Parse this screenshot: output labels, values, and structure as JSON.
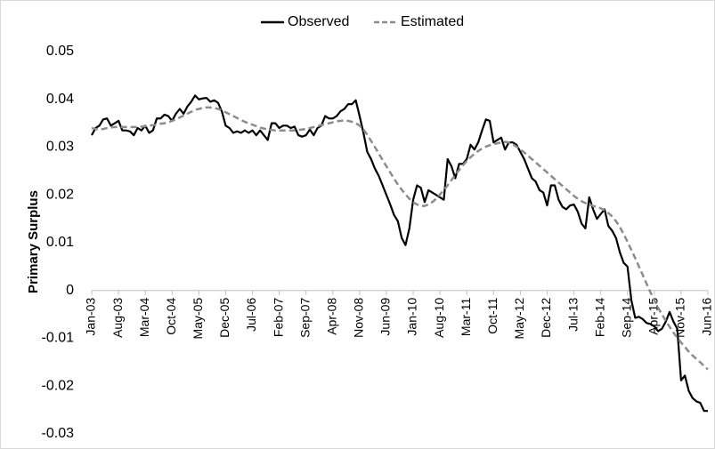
{
  "chart_data": {
    "type": "line",
    "y_label": "Primary Surplus",
    "legend": "top",
    "categories": [
      "Jan-03",
      null,
      null,
      null,
      null,
      null,
      null,
      "Aug-03",
      null,
      null,
      null,
      null,
      null,
      null,
      "Mar-04",
      null,
      null,
      null,
      null,
      null,
      null,
      "Oct-04",
      null,
      null,
      null,
      null,
      null,
      null,
      "May-05",
      null,
      null,
      null,
      null,
      null,
      null,
      "Dec-05",
      null,
      null,
      null,
      null,
      null,
      null,
      "Jul-06",
      null,
      null,
      null,
      null,
      null,
      null,
      "Feb-07",
      null,
      null,
      null,
      null,
      null,
      null,
      "Sep-07",
      null,
      null,
      null,
      null,
      null,
      null,
      "Apr-08",
      null,
      null,
      null,
      null,
      null,
      null,
      "Nov-08",
      null,
      null,
      null,
      null,
      null,
      null,
      "Jun-09",
      null,
      null,
      null,
      null,
      null,
      null,
      "Jan-10",
      null,
      null,
      null,
      null,
      null,
      null,
      "Aug-10",
      null,
      null,
      null,
      null,
      null,
      null,
      "Mar-11",
      null,
      null,
      null,
      null,
      null,
      null,
      "Oct-11",
      null,
      null,
      null,
      null,
      null,
      null,
      "May-12",
      null,
      null,
      null,
      null,
      null,
      null,
      "Dec-12",
      null,
      null,
      null,
      null,
      null,
      null,
      "Jul-13",
      null,
      null,
      null,
      null,
      null,
      null,
      "Feb-14",
      null,
      null,
      null,
      null,
      null,
      null,
      "Sep-14",
      null,
      null,
      null,
      null,
      null,
      null,
      "Apr-15",
      null,
      null,
      null,
      null,
      null,
      null,
      "Nov-15",
      null,
      null,
      null,
      null,
      null,
      null,
      "Jun-16"
    ],
    "series": [
      {
        "name": "Observed",
        "color": "#000000",
        "dash": false,
        "values": [
          0.0325,
          0.034,
          0.0345,
          0.0358,
          0.036,
          0.0345,
          0.035,
          0.0355,
          0.0335,
          0.0335,
          0.0333,
          0.0325,
          0.034,
          0.0335,
          0.0345,
          0.033,
          0.0335,
          0.036,
          0.036,
          0.0368,
          0.0365,
          0.0355,
          0.037,
          0.038,
          0.037,
          0.0385,
          0.0395,
          0.0408,
          0.04,
          0.0402,
          0.0403,
          0.0395,
          0.0398,
          0.0393,
          0.0375,
          0.0345,
          0.034,
          0.033,
          0.0333,
          0.033,
          0.0335,
          0.033,
          0.0335,
          0.0325,
          0.0335,
          0.0325,
          0.0315,
          0.035,
          0.035,
          0.034,
          0.0345,
          0.0345,
          0.034,
          0.0343,
          0.0325,
          0.0322,
          0.0325,
          0.0337,
          0.0325,
          0.034,
          0.0345,
          0.0365,
          0.036,
          0.036,
          0.0365,
          0.0375,
          0.038,
          0.039,
          0.039,
          0.0398,
          0.0365,
          0.033,
          0.029,
          0.0275,
          0.0255,
          0.024,
          0.022,
          0.02,
          0.018,
          0.0158,
          0.0145,
          0.011,
          0.0095,
          0.013,
          0.019,
          0.022,
          0.0215,
          0.0185,
          0.021,
          0.0205,
          0.02,
          0.0195,
          0.019,
          0.0275,
          0.026,
          0.0235,
          0.0265,
          0.0265,
          0.0275,
          0.0305,
          0.0295,
          0.031,
          0.0335,
          0.0358,
          0.0355,
          0.031,
          0.0315,
          0.032,
          0.0295,
          0.031,
          0.031,
          0.0305,
          0.029,
          0.0275,
          0.0255,
          0.0235,
          0.0228,
          0.021,
          0.0205,
          0.0178,
          0.022,
          0.022,
          0.019,
          0.0175,
          0.017,
          0.0178,
          0.018,
          0.0165,
          0.014,
          0.013,
          0.0195,
          0.017,
          0.015,
          0.016,
          0.017,
          0.0135,
          0.0125,
          0.011,
          0.008,
          0.0058,
          0.005,
          -0.002,
          -0.0057,
          -0.0055,
          -0.006,
          -0.0068,
          -0.007,
          -0.0075,
          -0.0085,
          -0.008,
          -0.0065,
          -0.0045,
          -0.0065,
          -0.008,
          -0.0188,
          -0.0178,
          -0.021,
          -0.0225,
          -0.0232,
          -0.0235,
          -0.0252,
          -0.0252
        ]
      },
      {
        "name": "Estimated",
        "color": "#8c8c8c",
        "dash": true,
        "values": [
          0.034,
          0.0338,
          0.0337,
          0.0338,
          0.034,
          0.0341,
          0.0342,
          0.0342,
          0.0342,
          0.0342,
          0.0342,
          0.0342,
          0.0342,
          0.0343,
          0.0344,
          0.0345,
          0.0346,
          0.0347,
          0.0349,
          0.035,
          0.0352,
          0.0355,
          0.0358,
          0.0362,
          0.0366,
          0.037,
          0.0374,
          0.0378,
          0.038,
          0.0382,
          0.0383,
          0.0383,
          0.0382,
          0.038,
          0.0377,
          0.0373,
          0.0369,
          0.0365,
          0.0361,
          0.0357,
          0.0353,
          0.035,
          0.0347,
          0.0344,
          0.0341,
          0.0339,
          0.0337,
          0.0336,
          0.0335,
          0.0335,
          0.0335,
          0.0335,
          0.0335,
          0.0335,
          0.0336,
          0.0337,
          0.0338,
          0.034,
          0.0342,
          0.0344,
          0.0346,
          0.0348,
          0.035,
          0.0352,
          0.0354,
          0.0355,
          0.0356,
          0.0355,
          0.0353,
          0.035,
          0.0345,
          0.0337,
          0.0326,
          0.0313,
          0.03,
          0.0287,
          0.0273,
          0.026,
          0.0247,
          0.0234,
          0.0222,
          0.0211,
          0.0201,
          0.0192,
          0.0185,
          0.018,
          0.0177,
          0.0177,
          0.018,
          0.0185,
          0.0192,
          0.0201,
          0.021,
          0.022,
          0.0231,
          0.0242,
          0.0252,
          0.0262,
          0.0271,
          0.0279,
          0.0286,
          0.0292,
          0.0297,
          0.0301,
          0.0304,
          0.0306,
          0.0308,
          0.031,
          0.0311,
          0.031,
          0.0306,
          0.0301,
          0.0295,
          0.0289,
          0.0282,
          0.0275,
          0.0268,
          0.0261,
          0.0254,
          0.0247,
          0.024,
          0.0233,
          0.0226,
          0.0219,
          0.0212,
          0.0205,
          0.0198,
          0.0192,
          0.0187,
          0.0183,
          0.018,
          0.0177,
          0.0175,
          0.0172,
          0.0168,
          0.0162,
          0.0155,
          0.0145,
          0.0133,
          0.0118,
          0.0102,
          0.0085,
          0.0068,
          0.005,
          0.0032,
          0.0014,
          -0.0004,
          -0.002,
          -0.0036,
          -0.005,
          -0.0063,
          -0.0076,
          -0.0088,
          -0.0099,
          -0.0109,
          -0.0118,
          -0.0128,
          -0.0136,
          -0.0143,
          -0.015,
          -0.0158,
          -0.0165
        ]
      }
    ],
    "ylim": [
      -0.03,
      0.05
    ],
    "yticks": [
      0.05,
      0.04,
      0.03,
      0.02,
      0.01,
      0,
      -0.01,
      -0.02,
      -0.03
    ],
    "grid": false
  }
}
